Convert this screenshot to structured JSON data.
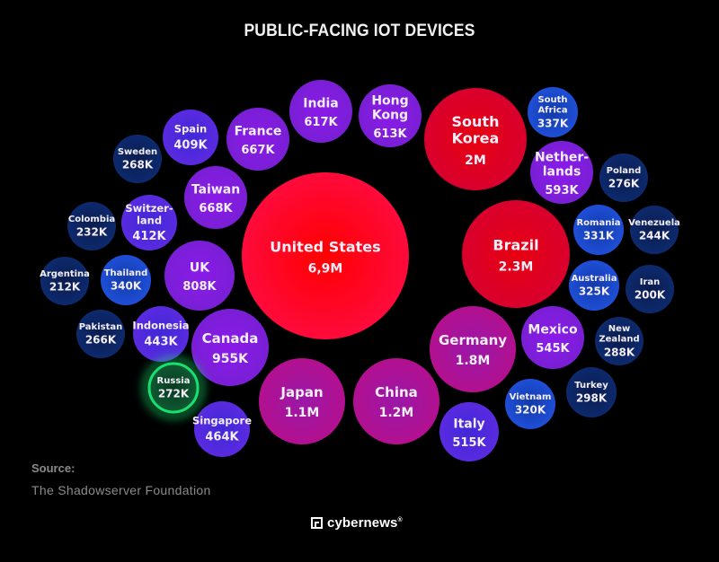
{
  "title": "PUBLIC-FACING IOT DEVICES",
  "source": {
    "label": "Source:",
    "value": "The Shadowserver Foundation"
  },
  "brand": {
    "name": "cybernews",
    "mark": "®"
  },
  "palette": {
    "red": "#ff0a3c",
    "crimson": "#d8002e",
    "magenta": "#b3108f",
    "purple": "#7a1fd6",
    "violet": "#5a2ae0",
    "blue": "#1f4fd8",
    "navy": "#0d2a6e",
    "highlight_green": "#18e070"
  },
  "chart_data": {
    "type": "bubble",
    "title": "PUBLIC-FACING IOT DEVICES",
    "unit": "devices",
    "highlighted": "Russia",
    "items": [
      {
        "country": "United States",
        "lines": [
          "United States"
        ],
        "label": "6,9M",
        "value": 6900000,
        "tone": "red"
      },
      {
        "country": "Brazil",
        "lines": [
          "Brazil"
        ],
        "label": "2.3M",
        "value": 2300000,
        "tone": "crimson"
      },
      {
        "country": "South Korea",
        "lines": [
          "South",
          "Korea"
        ],
        "label": "2M",
        "value": 2000000,
        "tone": "crimson"
      },
      {
        "country": "Germany",
        "lines": [
          "Germany"
        ],
        "label": "1.8M",
        "value": 1800000,
        "tone": "magenta"
      },
      {
        "country": "China",
        "lines": [
          "China"
        ],
        "label": "1.2M",
        "value": 1200000,
        "tone": "magenta"
      },
      {
        "country": "Japan",
        "lines": [
          "Japan"
        ],
        "label": "1.1M",
        "value": 1100000,
        "tone": "magenta"
      },
      {
        "country": "Canada",
        "lines": [
          "Canada"
        ],
        "label": "955K",
        "value": 955000,
        "tone": "purple"
      },
      {
        "country": "UK",
        "lines": [
          "UK"
        ],
        "label": "808K",
        "value": 808000,
        "tone": "purple"
      },
      {
        "country": "Taiwan",
        "lines": [
          "Taiwan"
        ],
        "label": "668K",
        "value": 668000,
        "tone": "purple"
      },
      {
        "country": "France",
        "lines": [
          "France"
        ],
        "label": "667K",
        "value": 667000,
        "tone": "purple"
      },
      {
        "country": "India",
        "lines": [
          "India"
        ],
        "label": "617K",
        "value": 617000,
        "tone": "purple"
      },
      {
        "country": "Hong Kong",
        "lines": [
          "Hong",
          "Kong"
        ],
        "label": "613K",
        "value": 613000,
        "tone": "purple"
      },
      {
        "country": "Netherlands",
        "lines": [
          "Nether-",
          "lands"
        ],
        "label": "593K",
        "value": 593000,
        "tone": "purple"
      },
      {
        "country": "Mexico",
        "lines": [
          "Mexico"
        ],
        "label": "545K",
        "value": 545000,
        "tone": "purple"
      },
      {
        "country": "Italy",
        "lines": [
          "Italy"
        ],
        "label": "515K",
        "value": 515000,
        "tone": "violet"
      },
      {
        "country": "Singapore",
        "lines": [
          "Singapore"
        ],
        "label": "464K",
        "value": 464000,
        "tone": "violet"
      },
      {
        "country": "Indonesia",
        "lines": [
          "Indonesia"
        ],
        "label": "443K",
        "value": 443000,
        "tone": "violet"
      },
      {
        "country": "Switzerland",
        "lines": [
          "Switzer-",
          "land"
        ],
        "label": "412K",
        "value": 412000,
        "tone": "violet"
      },
      {
        "country": "Spain",
        "lines": [
          "Spain"
        ],
        "label": "409K",
        "value": 409000,
        "tone": "violet"
      },
      {
        "country": "Thailand",
        "lines": [
          "Thailand"
        ],
        "label": "340K",
        "value": 340000,
        "tone": "blue"
      },
      {
        "country": "South Africa",
        "lines": [
          "South",
          "Africa"
        ],
        "label": "337K",
        "value": 337000,
        "tone": "blue"
      },
      {
        "country": "Romania",
        "lines": [
          "Romania"
        ],
        "label": "331K",
        "value": 331000,
        "tone": "blue"
      },
      {
        "country": "Australia",
        "lines": [
          "Australia"
        ],
        "label": "325K",
        "value": 325000,
        "tone": "blue"
      },
      {
        "country": "Vietnam",
        "lines": [
          "Vietnam"
        ],
        "label": "320K",
        "value": 320000,
        "tone": "blue"
      },
      {
        "country": "Turkey",
        "lines": [
          "Turkey"
        ],
        "label": "298K",
        "value": 298000,
        "tone": "navy"
      },
      {
        "country": "New Zealand",
        "lines": [
          "New",
          "Zealand"
        ],
        "label": "288K",
        "value": 288000,
        "tone": "navy"
      },
      {
        "country": "Poland",
        "lines": [
          "Poland"
        ],
        "label": "276K",
        "value": 276000,
        "tone": "navy"
      },
      {
        "country": "Russia",
        "lines": [
          "Russia"
        ],
        "label": "272K",
        "value": 272000,
        "tone": "highlight"
      },
      {
        "country": "Sweden",
        "lines": [
          "Sweden"
        ],
        "label": "268K",
        "value": 268000,
        "tone": "navy"
      },
      {
        "country": "Pakistan",
        "lines": [
          "Pakistan"
        ],
        "label": "266K",
        "value": 266000,
        "tone": "navy"
      },
      {
        "country": "Venezuela",
        "lines": [
          "Venezuela"
        ],
        "label": "244K",
        "value": 244000,
        "tone": "navy"
      },
      {
        "country": "Colombia",
        "lines": [
          "Colombia"
        ],
        "label": "232K",
        "value": 232000,
        "tone": "navy"
      },
      {
        "country": "Argentina",
        "lines": [
          "Argentina"
        ],
        "label": "212K",
        "value": 212000,
        "tone": "navy"
      },
      {
        "country": "Iran",
        "lines": [
          "Iran"
        ],
        "label": "200K",
        "value": 200000,
        "tone": "navy"
      }
    ]
  }
}
